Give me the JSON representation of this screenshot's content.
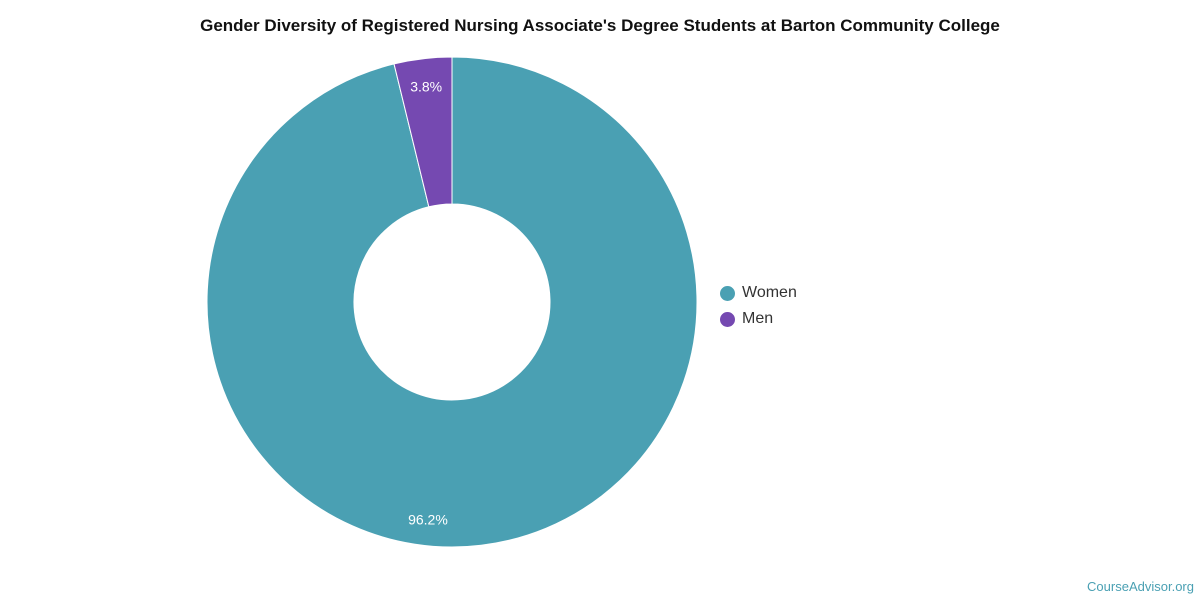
{
  "chart_data": {
    "type": "pie",
    "title": "Gender Diversity of Registered Nursing Associate's Degree Students at Barton Community College",
    "donut": true,
    "categories": [
      "Women",
      "Men"
    ],
    "values": [
      96.2,
      3.8
    ],
    "value_labels": [
      "96.2%",
      "3.8%"
    ],
    "colors": [
      "#4aa0b3",
      "#7549b1"
    ],
    "legend": {
      "position": "right",
      "entries": [
        "Women",
        "Men"
      ]
    }
  },
  "footer": {
    "source": "CourseAdvisor.org"
  }
}
